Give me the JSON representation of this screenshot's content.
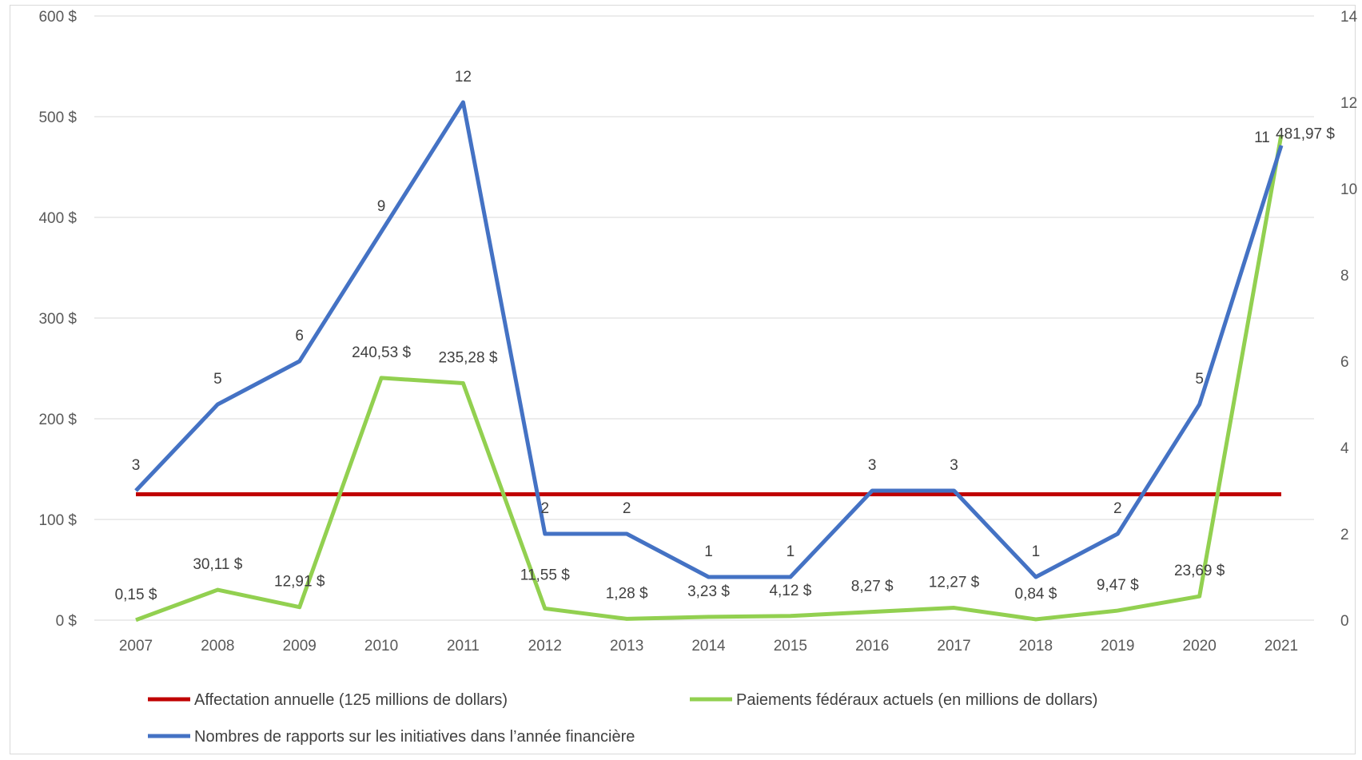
{
  "chart_data": {
    "type": "line",
    "categories": [
      "2007",
      "2008",
      "2009",
      "2010",
      "2011",
      "2012",
      "2013",
      "2014",
      "2015",
      "2016",
      "2017",
      "2018",
      "2019",
      "2020",
      "2021"
    ],
    "y_left": {
      "ticks": [
        "0 $",
        "100 $",
        "200 $",
        "300 $",
        "400 $",
        "500 $",
        "600 $"
      ],
      "range": [
        0,
        600
      ]
    },
    "y_right": {
      "ticks": [
        "0",
        "2",
        "4",
        "6",
        "8",
        "10",
        "12",
        "14"
      ],
      "range": [
        0,
        14
      ]
    },
    "grid": true,
    "legend_position": "bottom",
    "series": [
      {
        "name": "Affectation annuelle (125 millions de dollars)",
        "axis": "left",
        "color": "#c00000",
        "values": [
          125,
          125,
          125,
          125,
          125,
          125,
          125,
          125,
          125,
          125,
          125,
          125,
          125,
          125,
          125
        ],
        "labels": []
      },
      {
        "name": "Paiements fédéraux actuels (en millions de dollars)",
        "axis": "left",
        "color": "#92d050",
        "values": [
          0.15,
          30.11,
          12.91,
          240.53,
          235.28,
          11.55,
          1.28,
          3.23,
          4.12,
          8.27,
          12.27,
          0.84,
          9.47,
          23.69,
          481.97
        ],
        "labels": [
          "0,15 $",
          "30,11 $",
          "12,91 $",
          "240,53 $",
          "235,28 $",
          "11,55 $",
          "1,28 $",
          "3,23 $",
          "4,12 $",
          "8,27 $",
          "12,27 $",
          "0,84 $",
          "9,47 $",
          "23,69 $",
          "481,97 $"
        ]
      },
      {
        "name": "Nombres de rapports sur les initiatives dans l’année financière",
        "axis": "right",
        "color": "#4472c4",
        "values": [
          3,
          5,
          6,
          9,
          12,
          2,
          2,
          1,
          1,
          3,
          3,
          1,
          2,
          5,
          11
        ],
        "labels": [
          "3",
          "5",
          "6",
          "9",
          "12",
          "2",
          "2",
          "1",
          "1",
          "3",
          "3",
          "1",
          "2",
          "5",
          "11"
        ]
      }
    ]
  }
}
